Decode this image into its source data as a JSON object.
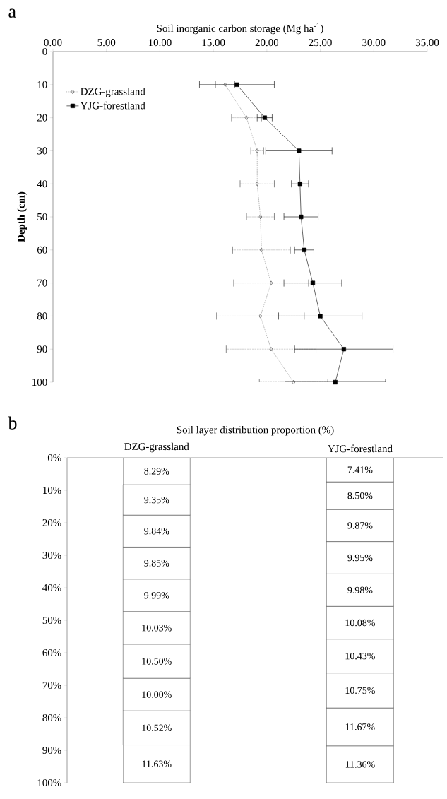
{
  "chart_data": [
    {
      "type": "line",
      "orientation": "horizontal",
      "xlabel": "Soil inorganic carbon storage (Mg ha$^{-1}$)",
      "ylabel": "Depth (cm)",
      "annotations": [
        "a"
      ],
      "x": [
        10,
        20,
        30,
        40,
        50,
        60,
        70,
        80,
        90,
        100
      ],
      "series": [
        {
          "name": "DZG-grassland",
          "color": "#3a3a3a",
          "marker": "diamond",
          "line_style": "dotted",
          "values": [
            16.1,
            18.1,
            19.1,
            19.1,
            19.4,
            19.5,
            20.4,
            19.4,
            20.4,
            22.5
          ],
          "errors": [
            0.9,
            1.4,
            0.6,
            1.6,
            1.3,
            2.7,
            3.5,
            4.1,
            4.2,
            3.2
          ]
        },
        {
          "name": "YJG-forestland",
          "color": "#000000",
          "marker": "square",
          "line_style": "solid",
          "values": [
            17.2,
            19.8,
            23.0,
            23.1,
            23.2,
            23.5,
            24.3,
            25.0,
            27.2,
            26.4
          ],
          "errors": [
            3.5,
            0.7,
            3.1,
            0.8,
            1.6,
            0.9,
            2.7,
            3.9,
            4.6,
            4.7
          ]
        }
      ],
      "xlim": [
        0,
        35
      ],
      "xticks": [
        {
          "value": 0,
          "label": "0.00"
        },
        {
          "value": 5,
          "label": "5.00"
        },
        {
          "value": 10,
          "label": "10.00"
        },
        {
          "value": 15,
          "label": "15.00"
        },
        {
          "value": 20,
          "label": "20.00"
        },
        {
          "value": 25,
          "label": "25.00"
        },
        {
          "value": 30,
          "label": "30.00"
        },
        {
          "value": 35,
          "label": "35.00"
        }
      ],
      "ylim": [
        100,
        0
      ],
      "yticks": [
        0,
        10,
        20,
        30,
        40,
        50,
        60,
        70,
        80,
        90,
        100
      ],
      "legend": "top left"
    },
    {
      "type": "bar",
      "stacked": true,
      "title": "Soil layer distribution proportion (%)",
      "annotations": [
        "b"
      ],
      "categories": [
        "DZG-grassland",
        "YJG-forestland"
      ],
      "series": [
        {
          "color": "#ffffff",
          "values": [
            8.29,
            7.41
          ],
          "value_labels": [
            "8.29%",
            "7.41%"
          ]
        },
        {
          "color": "#ffffff",
          "values": [
            9.35,
            8.5
          ],
          "value_labels": [
            "9.35%",
            "8.50%"
          ]
        },
        {
          "color": "#ffffff",
          "values": [
            9.84,
            9.87
          ],
          "value_labels": [
            "9.84%",
            "9.87%"
          ]
        },
        {
          "color": "#ffffff",
          "values": [
            9.85,
            9.95
          ],
          "value_labels": [
            "9.85%",
            "9.95%"
          ]
        },
        {
          "color": "#ffffff",
          "values": [
            9.99,
            9.98
          ],
          "value_labels": [
            "9.99%",
            "9.98%"
          ]
        },
        {
          "color": "#ffffff",
          "values": [
            10.03,
            10.08
          ],
          "value_labels": [
            "10.03%",
            "10.08%"
          ]
        },
        {
          "color": "#ffffff",
          "values": [
            10.5,
            10.43
          ],
          "value_labels": [
            "10.50%",
            "10.43%"
          ]
        },
        {
          "color": "#ffffff",
          "values": [
            10.0,
            10.75
          ],
          "value_labels": [
            "10.00%",
            "10.75%"
          ]
        },
        {
          "color": "#ffffff",
          "values": [
            10.52,
            11.67
          ],
          "value_labels": [
            "10.52%",
            "11.67%"
          ]
        },
        {
          "color": "#ffffff",
          "values": [
            11.63,
            11.36
          ],
          "value_labels": [
            "11.63%",
            "11.36%"
          ]
        }
      ],
      "ylim": [
        100,
        0
      ],
      "yticks": [
        {
          "value": 0,
          "label": "0%"
        },
        {
          "value": 10,
          "label": "10%"
        },
        {
          "value": 20,
          "label": "20%"
        },
        {
          "value": 30,
          "label": "30%"
        },
        {
          "value": 40,
          "label": "40%"
        },
        {
          "value": 50,
          "label": "50%"
        },
        {
          "value": 60,
          "label": "60%"
        },
        {
          "value": 70,
          "label": "70%"
        },
        {
          "value": 80,
          "label": "80%"
        },
        {
          "value": 90,
          "label": "90%"
        },
        {
          "value": 100,
          "label": "100%"
        }
      ]
    }
  ]
}
